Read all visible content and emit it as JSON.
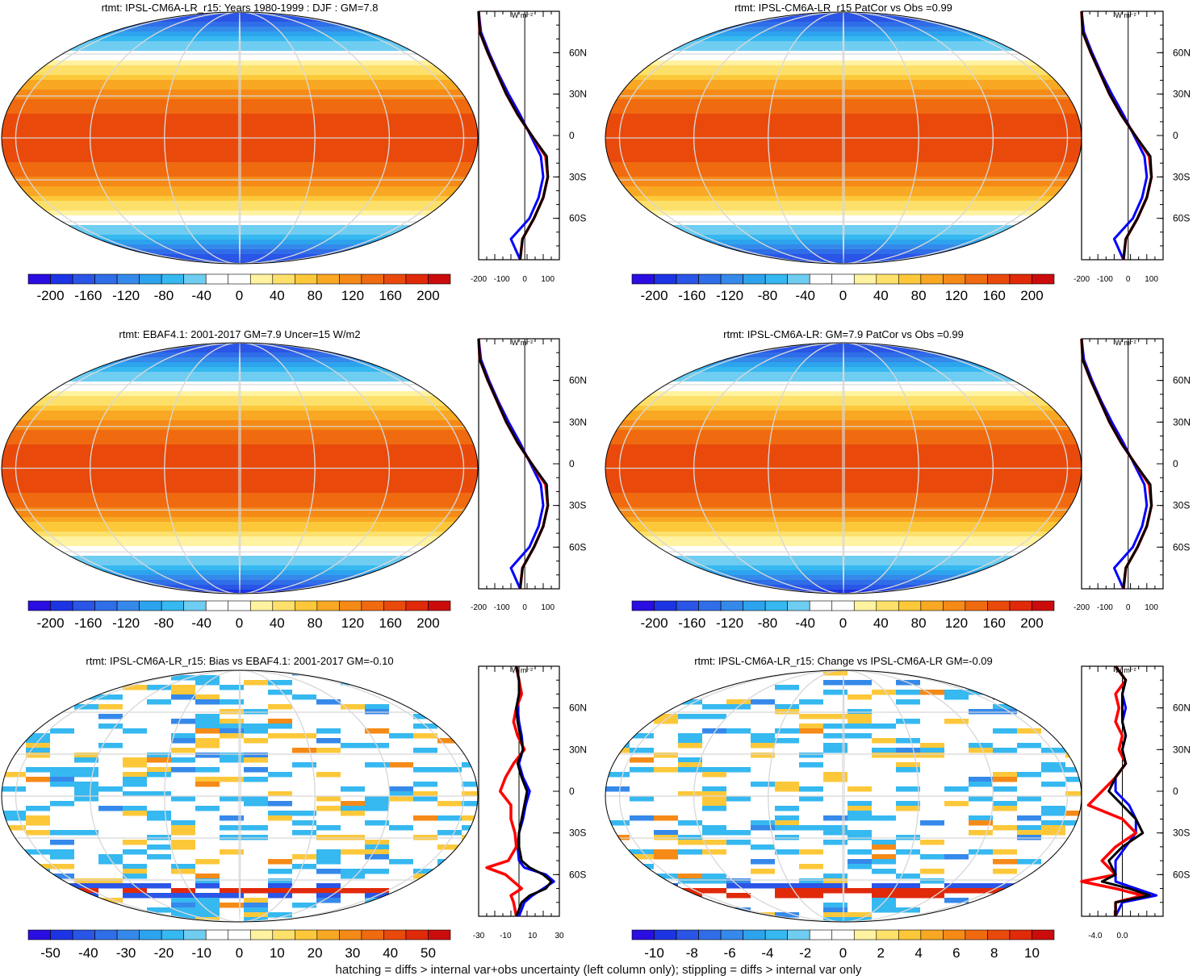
{
  "footer": "hatching = diffs > internal var+obs uncertainty (left column only); stippling = diffs > internal var only",
  "colors": {
    "main_scale": [
      "#2a0de0",
      "#1c34e4",
      "#2a55e6",
      "#2f6ee8",
      "#3589ea",
      "#2da3ee",
      "#36b8f0",
      "#6fcdf2",
      "#ffffff",
      "#ffffff",
      "#fff2a0",
      "#fde06a",
      "#fcc83a",
      "#f9a823",
      "#f58a17",
      "#f06a10",
      "#e94a0c",
      "#e02a0a",
      "#cc0c0c"
    ],
    "model_line": "#ff0000",
    "obs_line": "#000000",
    "ref_line": "#0000ff"
  },
  "chart_data": [
    {
      "type": "heatmap",
      "title": "rtmt: IPSL-CM6A-LR_r15: Years 1980-1999 : DJF : GM=7.8",
      "colorbar_ticks": [
        "-200",
        "-160",
        "-120",
        "-80",
        "-40",
        "0",
        "40",
        "80",
        "120",
        "160",
        "200"
      ],
      "zonal_profile": {
        "units": "W m-2",
        "xlim": [
          -200,
          150
        ],
        "x_ticks": [
          "-200",
          "-100",
          "0",
          "100"
        ],
        "lat_ticks": [
          "60N",
          "30N",
          "0",
          "30S",
          "60S"
        ],
        "lat": [
          90,
          75,
          60,
          45,
          30,
          15,
          0,
          -15,
          -30,
          -45,
          -60,
          -75,
          -90
        ],
        "series": [
          {
            "values": [
              -215,
              -195,
              -160,
              -120,
              -80,
              -30,
              30,
              90,
              100,
              80,
              40,
              -10,
              -20
            ]
          },
          {
            "values": [
              -215,
              -190,
              -155,
              -115,
              -70,
              -20,
              25,
              70,
              80,
              60,
              20,
              -60,
              -20
            ]
          },
          {
            "values": [
              -215,
              -195,
              -160,
              -120,
              -80,
              -30,
              30,
              95,
              100,
              80,
              40,
              -10,
              -20
            ]
          }
        ]
      }
    },
    {
      "type": "heatmap",
      "title": "rtmt: IPSL-CM6A-LR_r15 PatCor vs Obs =0.99",
      "colorbar_ticks": [
        "-200",
        "-160",
        "-120",
        "-80",
        "-40",
        "0",
        "40",
        "80",
        "120",
        "160",
        "200"
      ],
      "zonal_profile": {
        "units": "W m-2",
        "xlim": [
          -200,
          150
        ],
        "x_ticks": [
          "-200",
          "-100",
          "0",
          "100"
        ],
        "lat_ticks": [
          "60N",
          "30N",
          "0",
          "30S",
          "60S"
        ],
        "lat": [
          90,
          75,
          60,
          45,
          30,
          15,
          0,
          -15,
          -30,
          -45,
          -60,
          -75,
          -90
        ],
        "series": [
          {
            "values": [
              -215,
              -195,
              -160,
              -120,
              -80,
              -30,
              30,
              90,
              100,
              80,
              40,
              -10,
              -20
            ]
          },
          {
            "values": [
              -215,
              -190,
              -155,
              -115,
              -70,
              -20,
              25,
              70,
              80,
              60,
              20,
              -60,
              -20
            ]
          },
          {
            "values": [
              -215,
              -195,
              -160,
              -120,
              -80,
              -30,
              30,
              95,
              100,
              80,
              40,
              -10,
              -20
            ]
          }
        ]
      }
    },
    {
      "type": "heatmap",
      "title": "rtmt: EBAF4.1: 2001-2017 GM=7.9 Uncer=15 W/m2",
      "colorbar_ticks": [
        "-200",
        "-160",
        "-120",
        "-80",
        "-40",
        "0",
        "40",
        "80",
        "120",
        "160",
        "200"
      ],
      "zonal_profile": {
        "units": "W m-2",
        "xlim": [
          -200,
          150
        ],
        "x_ticks": [
          "-200",
          "-100",
          "0",
          "100"
        ],
        "lat_ticks": [
          "60N",
          "30N",
          "0",
          "30S",
          "60S"
        ],
        "lat": [
          90,
          75,
          60,
          45,
          30,
          15,
          0,
          -15,
          -30,
          -45,
          -60,
          -75,
          -90
        ],
        "series": [
          {
            "values": [
              -215,
              -195,
              -160,
              -120,
              -80,
              -30,
              30,
              90,
              100,
              80,
              40,
              -10,
              -20
            ]
          },
          {
            "values": [
              -215,
              -190,
              -155,
              -115,
              -70,
              -20,
              25,
              70,
              80,
              60,
              20,
              -60,
              -20
            ]
          },
          {
            "values": [
              -215,
              -195,
              -160,
              -120,
              -80,
              -30,
              30,
              95,
              100,
              80,
              40,
              -10,
              -20
            ]
          }
        ]
      }
    },
    {
      "type": "heatmap",
      "title": "rtmt: IPSL-CM6A-LR: GM=7.9 PatCor vs Obs =0.99",
      "colorbar_ticks": [
        "-200",
        "-160",
        "-120",
        "-80",
        "-40",
        "0",
        "40",
        "80",
        "120",
        "160",
        "200"
      ],
      "zonal_profile": {
        "units": "W m-2",
        "xlim": [
          -200,
          150
        ],
        "x_ticks": [
          "-200",
          "-100",
          "0",
          "100"
        ],
        "lat_ticks": [
          "60N",
          "30N",
          "0",
          "30S",
          "60S"
        ],
        "lat": [
          90,
          75,
          60,
          45,
          30,
          15,
          0,
          -15,
          -30,
          -45,
          -60,
          -75,
          -90
        ],
        "series": [
          {
            "values": [
              -215,
              -195,
              -160,
              -120,
              -80,
              -30,
              30,
              90,
              100,
              80,
              40,
              -10,
              -20
            ]
          },
          {
            "values": [
              -215,
              -190,
              -155,
              -115,
              -70,
              -20,
              25,
              70,
              80,
              60,
              20,
              -60,
              -20
            ]
          },
          {
            "values": [
              -215,
              -195,
              -160,
              -120,
              -80,
              -30,
              30,
              95,
              100,
              80,
              40,
              -10,
              -20
            ]
          }
        ]
      }
    },
    {
      "type": "heatmap",
      "title": "rtmt: IPSL-CM6A-LR_r15: Bias vs EBAF4.1: 2001-2017 GM=-0.10",
      "colorbar_ticks": [
        "-50",
        "-40",
        "-30",
        "-20",
        "-10",
        "0",
        "10",
        "20",
        "30",
        "40",
        "50"
      ],
      "zonal_profile": {
        "units": "W m-2",
        "xlim": [
          -30,
          30
        ],
        "x_ticks": [
          "-30",
          "-10",
          "10",
          "30"
        ],
        "lat_ticks": [
          "60N",
          "30N",
          "0",
          "30S",
          "60S"
        ],
        "lat": [
          90,
          80,
          70,
          60,
          50,
          40,
          30,
          20,
          10,
          0,
          -10,
          -20,
          -30,
          -40,
          -50,
          -55,
          -60,
          -65,
          -70,
          -75,
          -80,
          -90
        ],
        "series": [
          {
            "values": [
              -2,
              0,
              2,
              -2,
              -4,
              -1,
              4,
              -4,
              -10,
              -14,
              -6,
              -6,
              -3,
              -2,
              -8,
              -24,
              -10,
              -4,
              2,
              -6,
              -4,
              -2
            ]
          },
          {
            "values": [
              -2,
              0,
              0,
              -1,
              0,
              2,
              3,
              0,
              3,
              8,
              5,
              3,
              0,
              -1,
              0,
              4,
              20,
              26,
              18,
              10,
              4,
              0
            ]
          },
          {
            "values": [
              -2,
              0,
              0,
              -2,
              -1,
              1,
              3,
              -1,
              2,
              6,
              4,
              2,
              0,
              0,
              2,
              8,
              18,
              24,
              20,
              8,
              2,
              -2
            ]
          }
        ]
      }
    },
    {
      "type": "heatmap",
      "title": "rtmt: IPSL-CM6A-LR_r15: Change vs IPSL-CM6A-LR GM=-0.09",
      "colorbar_ticks": [
        "-10",
        "-8",
        "-6",
        "-4",
        "-2",
        "0",
        "2",
        "4",
        "6",
        "8",
        "10"
      ],
      "zonal_profile": {
        "units": "W m-2",
        "xlim": [
          -6,
          6
        ],
        "x_ticks": [
          "-4.0",
          "0.0"
        ],
        "lat_ticks": [
          "60N",
          "30N",
          "0",
          "30S",
          "60S"
        ],
        "lat": [
          90,
          80,
          70,
          60,
          50,
          40,
          30,
          20,
          10,
          0,
          -10,
          -20,
          -30,
          -40,
          -50,
          -60,
          -65,
          -70,
          -75,
          -80,
          -90
        ],
        "series": [
          {
            "values": [
              -1,
              0.5,
              -1,
              -0.5,
              -1,
              0,
              -0.5,
              0.5,
              -1,
              -3,
              -5,
              0,
              2,
              -1,
              -3,
              -1,
              -6,
              -1,
              3,
              -1,
              -1
            ]
          },
          {
            "values": [
              -1,
              0.5,
              0,
              0.5,
              0,
              0.5,
              0,
              0.5,
              -1,
              -1,
              1,
              2,
              2,
              0.5,
              -1,
              -1,
              -1,
              2,
              5,
              0,
              -1
            ]
          },
          {
            "values": [
              -1,
              0.5,
              0,
              0,
              0,
              0.5,
              0,
              0.5,
              -1,
              -2,
              0,
              2,
              3,
              0,
              -2,
              -1,
              -3,
              1,
              4,
              -1,
              -1
            ]
          }
        ]
      }
    }
  ]
}
